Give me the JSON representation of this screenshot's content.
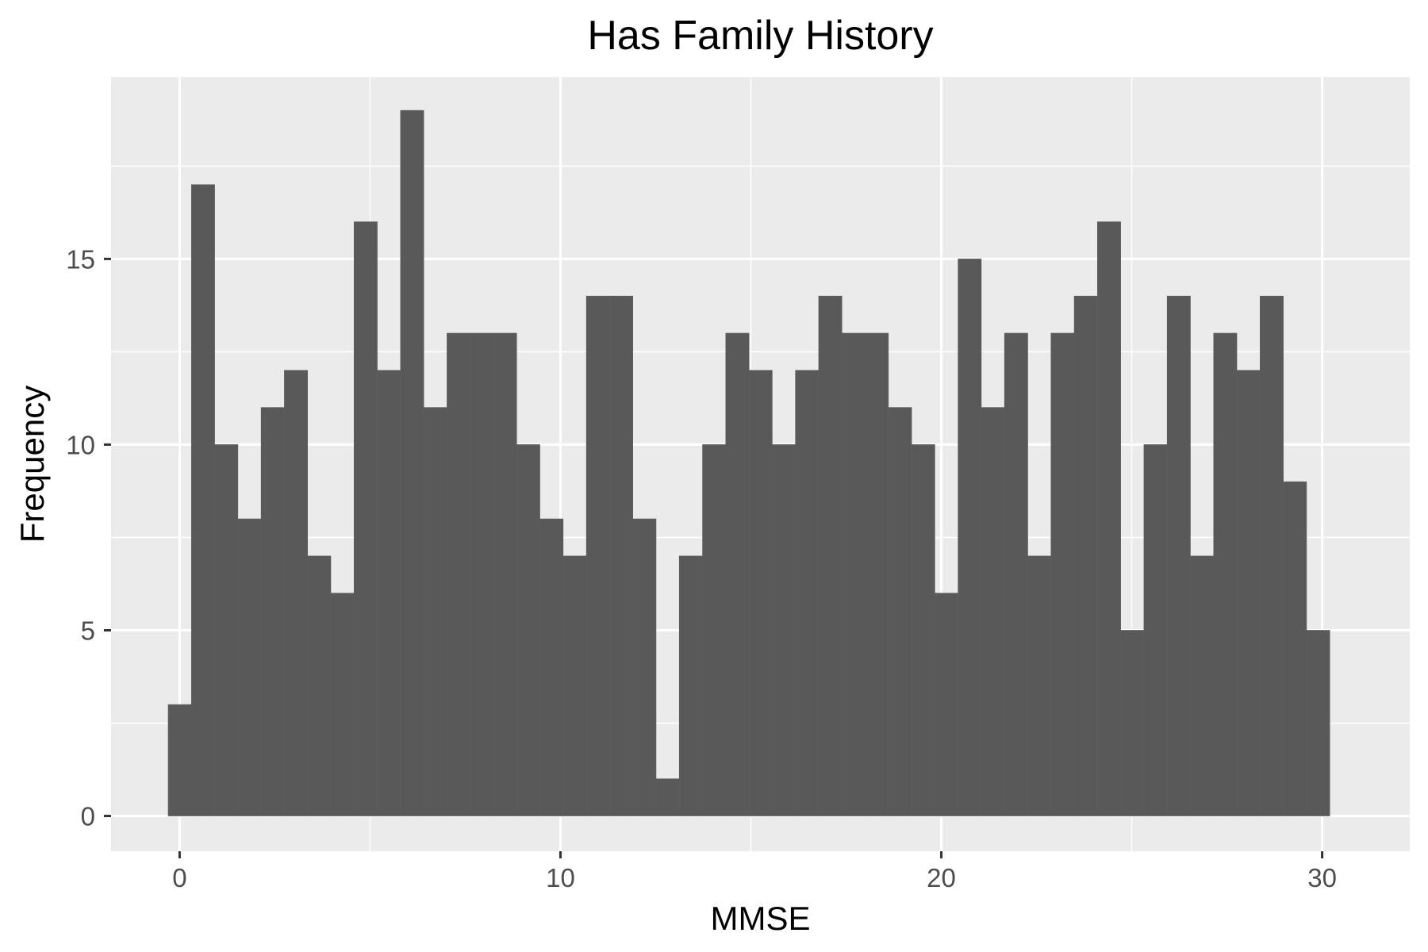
{
  "chart_data": {
    "type": "bar",
    "title": "Has Family History",
    "xlabel": "MMSE",
    "ylabel": "Frequency",
    "x_ticks": [
      0,
      10,
      20,
      30
    ],
    "y_ticks": [
      0,
      5,
      10,
      15
    ],
    "xlim": [
      -1.8,
      32.3
    ],
    "ylim": [
      -0.95,
      19.9
    ],
    "bin_width": 0.61,
    "bin_start": -0.3,
    "values": [
      3,
      17,
      10,
      8,
      11,
      12,
      7,
      6,
      16,
      12,
      19,
      11,
      13,
      13,
      13,
      10,
      8,
      7,
      14,
      14,
      8,
      1,
      7,
      10,
      13,
      12,
      10,
      12,
      14,
      13,
      13,
      11,
      10,
      6,
      15,
      11,
      13,
      7,
      13,
      14,
      16,
      5,
      10,
      14,
      7,
      13,
      12,
      14,
      9,
      5
    ],
    "bar_color": "#595959",
    "panel_background": "#ebebeb",
    "grid": true,
    "grid_color": "#ffffff"
  }
}
